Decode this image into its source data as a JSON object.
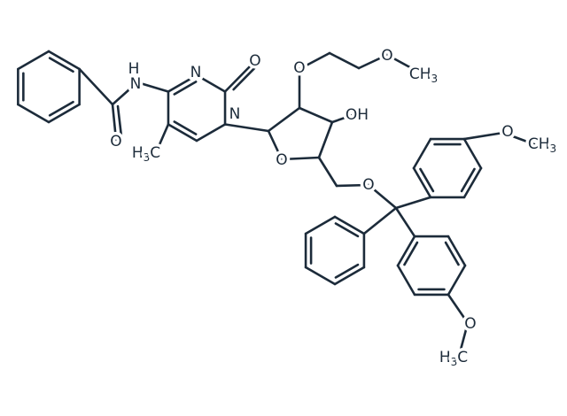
{
  "molecule": {
    "atoms": [
      {
        "parts": [
          "N"
        ]
      },
      {
        "parts": [
          "H"
        ]
      },
      {
        "parts": [
          "N"
        ]
      },
      {
        "parts": [
          "O"
        ]
      },
      {
        "parts": [
          "N"
        ]
      },
      {
        "parts": [
          "O"
        ]
      },
      {
        "parts": [
          "H",
          "3",
          "C"
        ]
      },
      {
        "parts": [
          "O"
        ]
      },
      {
        "parts": [
          "O"
        ]
      },
      {
        "parts": [
          "CH",
          "3"
        ]
      },
      {
        "parts": [
          "OH"
        ]
      },
      {
        "parts": [
          "O"
        ]
      },
      {
        "parts": [
          "O"
        ]
      },
      {
        "parts": [
          "O"
        ]
      },
      {
        "parts": [
          "CH",
          "3"
        ]
      },
      {
        "parts": [
          "O"
        ]
      },
      {
        "parts": [
          "H",
          "3",
          "C"
        ]
      }
    ]
  }
}
